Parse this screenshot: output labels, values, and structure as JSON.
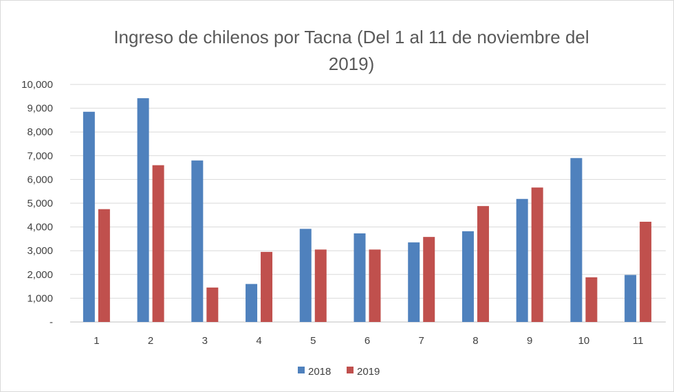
{
  "chart_data": {
    "type": "bar",
    "title_lines": [
      "Ingreso de chilenos por Tacna (Del 1 al 11 de noviembre del",
      "2019)"
    ],
    "categories": [
      "1",
      "2",
      "3",
      "4",
      "5",
      "6",
      "7",
      "8",
      "9",
      "10",
      "11"
    ],
    "series": [
      {
        "name": "2018",
        "color": "#4f81bd",
        "values": [
          8850,
          9420,
          6800,
          1600,
          3920,
          3730,
          3350,
          3820,
          5180,
          6900,
          1980
        ]
      },
      {
        "name": "2019",
        "color": "#c0504d",
        "values": [
          4750,
          6600,
          1450,
          2950,
          3050,
          3050,
          3580,
          4880,
          5660,
          1880,
          4220
        ]
      }
    ],
    "y_ticks": [
      "-",
      "1,000",
      "2,000",
      "3,000",
      "4,000",
      "5,000",
      "6,000",
      "7,000",
      "8,000",
      "9,000",
      "10,000"
    ],
    "ylim": [
      0,
      10000
    ],
    "grid": true,
    "legend_position": "bottom"
  }
}
